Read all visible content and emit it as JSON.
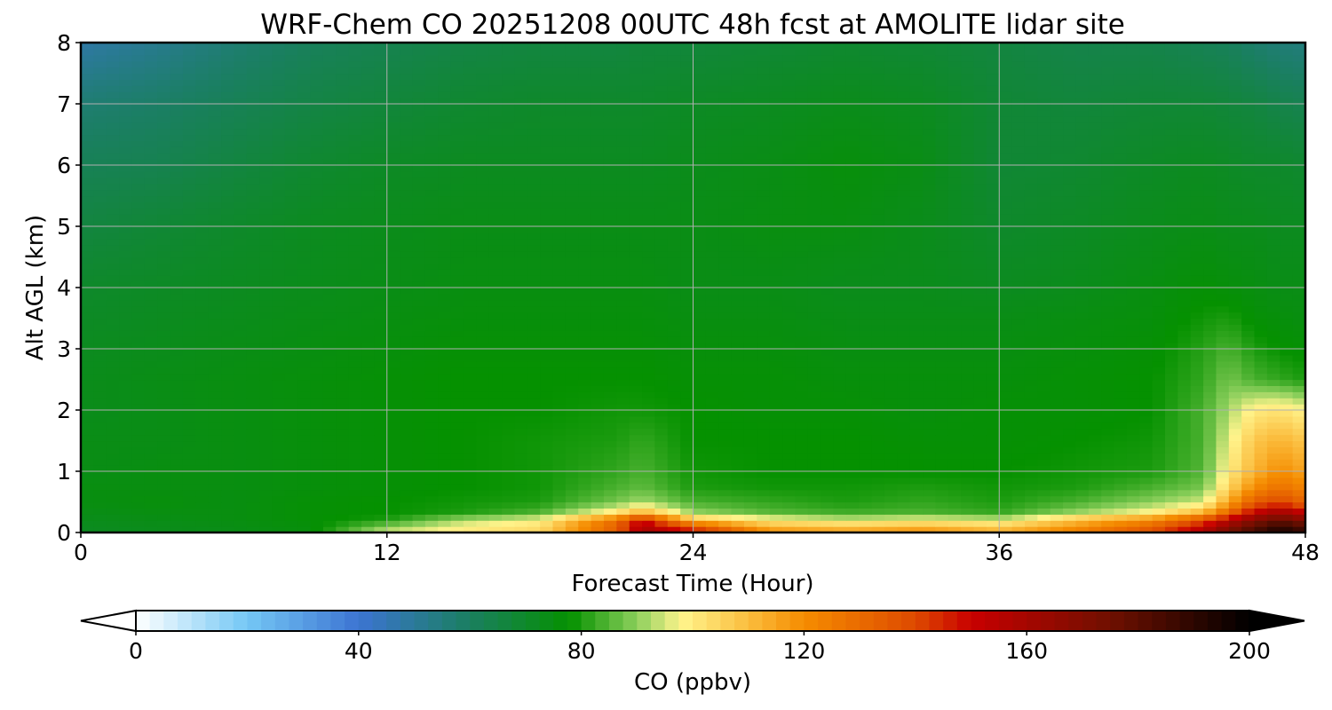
{
  "chart_data": {
    "type": "heatmap",
    "title": "WRF-Chem CO  20251208 00UTC 48h fcst at AMOLITE lidar site",
    "xlabel": "Forecast Time (Hour)",
    "ylabel": "Alt AGL (km)",
    "xlim": [
      0,
      48
    ],
    "ylim": [
      0,
      8
    ],
    "xticks": [
      "0",
      "12",
      "24",
      "36",
      "48"
    ],
    "yticks": [
      "0",
      "1",
      "2",
      "3",
      "4",
      "5",
      "6",
      "7",
      "8"
    ],
    "grid": true,
    "x": [
      0,
      3,
      6,
      9,
      12,
      15,
      18,
      21,
      22,
      24,
      27,
      30,
      33,
      36,
      39,
      42,
      44,
      45,
      46,
      47,
      48
    ],
    "y": [
      0,
      0.1,
      0.2,
      0.35,
      0.5,
      0.75,
      1.0,
      1.5,
      2.0,
      2.5,
      3.0,
      3.5,
      4.0,
      5.0,
      6.0,
      7.0,
      8.0
    ],
    "values": [
      [
        72,
        73,
        74,
        76,
        95,
        100,
        104,
        132,
        160,
        150,
        120,
        115,
        120,
        112,
        125,
        140,
        160,
        175,
        185,
        195,
        188
      ],
      [
        72,
        73,
        74,
        76,
        90,
        99,
        103,
        135,
        158,
        138,
        112,
        110,
        112,
        108,
        118,
        132,
        150,
        168,
        180,
        190,
        182
      ],
      [
        73,
        74,
        75,
        77,
        80,
        92,
        98,
        128,
        150,
        110,
        100,
        95,
        98,
        95,
        110,
        122,
        140,
        155,
        170,
        178,
        170
      ],
      [
        74,
        75,
        75,
        77,
        78,
        80,
        84,
        100,
        110,
        90,
        85,
        83,
        84,
        82,
        90,
        98,
        110,
        130,
        150,
        160,
        150
      ],
      [
        75,
        76,
        75,
        77,
        78,
        79,
        80,
        88,
        92,
        84,
        82,
        80,
        82,
        80,
        84,
        90,
        95,
        115,
        135,
        140,
        132
      ],
      [
        75,
        75,
        75,
        76,
        77,
        78,
        79,
        84,
        86,
        80,
        79,
        79,
        80,
        79,
        80,
        84,
        88,
        105,
        120,
        128,
        122
      ],
      [
        74,
        75,
        75,
        76,
        77,
        78,
        79,
        82,
        84,
        79,
        78,
        78,
        78,
        78,
        79,
        80,
        85,
        100,
        112,
        120,
        115
      ],
      [
        74,
        74,
        75,
        76,
        77,
        78,
        79,
        80,
        82,
        78,
        78,
        78,
        77,
        77,
        78,
        79,
        84,
        96,
        108,
        112,
        108
      ],
      [
        73,
        74,
        75,
        76,
        77,
        78,
        78,
        79,
        79,
        78,
        77,
        77,
        76,
        77,
        77,
        78,
        84,
        92,
        100,
        102,
        98
      ],
      [
        73,
        74,
        75,
        76,
        77,
        78,
        78,
        78,
        78,
        77,
        77,
        76,
        76,
        76,
        77,
        78,
        82,
        88,
        84,
        82,
        80
      ],
      [
        72,
        73,
        74,
        75,
        76,
        77,
        77,
        77,
        77,
        76,
        76,
        75,
        75,
        75,
        76,
        77,
        81,
        84,
        80,
        78,
        77
      ],
      [
        71,
        72,
        73,
        74,
        75,
        76,
        76,
        76,
        76,
        75,
        75,
        74,
        74,
        74,
        75,
        76,
        79,
        80,
        77,
        76,
        75
      ],
      [
        70,
        71,
        72,
        73,
        74,
        75,
        75,
        75,
        75,
        74,
        74,
        73,
        73,
        72,
        73,
        75,
        77,
        76,
        75,
        74,
        74
      ],
      [
        66,
        68,
        70,
        72,
        73,
        74,
        74,
        74,
        74,
        74,
        75,
        75,
        73,
        70,
        71,
        73,
        74,
        73,
        73,
        72,
        72
      ],
      [
        62,
        63,
        66,
        69,
        71,
        72,
        72,
        72,
        72,
        73,
        74,
        76,
        74,
        68,
        69,
        71,
        72,
        71,
        70,
        70,
        69
      ],
      [
        57,
        59,
        62,
        65,
        67,
        69,
        70,
        70,
        70,
        71,
        72,
        73,
        72,
        68,
        67,
        68,
        68,
        67,
        66,
        64,
        63
      ],
      [
        48,
        52,
        57,
        61,
        63,
        65,
        66,
        66,
        67,
        67,
        68,
        69,
        68,
        66,
        64,
        64,
        62,
        61,
        58,
        56,
        55
      ]
    ],
    "colorbar": {
      "label": "CO  (ppbv)",
      "min": 0,
      "max": 200,
      "ticks": [
        "0",
        "40",
        "80",
        "120",
        "160",
        "200"
      ],
      "extend": "both",
      "orientation": "horizontal",
      "colors": {
        "0": "#ffffff",
        "20": "#74c7f5",
        "40": "#3c74d2",
        "60": "#1a7f60",
        "78": "#059100",
        "90": "#8ccf5c",
        "98": "#fff48c",
        "110": "#fbbd3e",
        "120": "#f58c00",
        "140": "#de4a00",
        "150": "#c80000",
        "175": "#701000",
        "200": "#000000"
      }
    }
  }
}
